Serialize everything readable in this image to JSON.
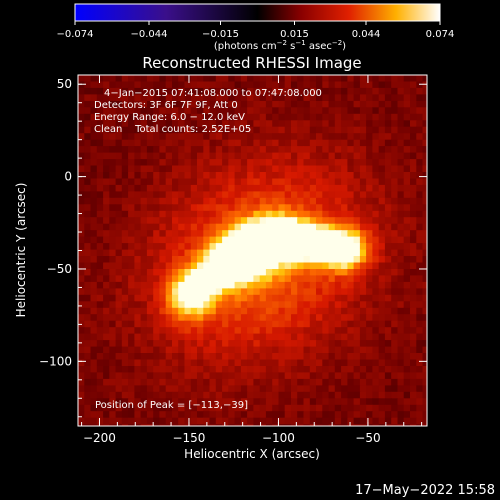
{
  "chart_data": {
    "type": "heatmap",
    "title": "Reconstructed RHESSI Image",
    "xlabel": "Heliocentric X (arcsec)",
    "ylabel": "Heliocentric Y (arcsec)",
    "xlim": [
      -212,
      -17
    ],
    "ylim": [
      -135,
      55
    ],
    "xticks": [
      -200,
      -150,
      -100,
      -50
    ],
    "xtick_labels": [
      "−200",
      "−150",
      "−100",
      "−50"
    ],
    "yticks": [
      50,
      0,
      -50,
      -100
    ],
    "ytick_labels": [
      "50",
      "0",
      "−50",
      "−100"
    ],
    "colorbar": {
      "ticks": [
        -0.074,
        -0.044,
        -0.015,
        0.015,
        0.044,
        0.074
      ],
      "tick_labels": [
        "−0.074",
        "−0.044",
        "−0.015",
        "0.015",
        "0.044",
        "0.074"
      ],
      "range": [
        -0.074,
        0.074
      ],
      "unit_label_parts": [
        "(photons cm",
        "−2",
        " s",
        "−1",
        " asec",
        "−2",
        ")"
      ]
    },
    "annotations": [
      "4−Jan−2015 07:41:08.000 to 07:47:08.000",
      "Detectors: 3F 6F 7F 9F, Att 0",
      "Energy Range: 6.0 − 12.0 keV",
      "Clean    Total counts: 2.52E+05"
    ],
    "peak_label": "Position of Peak = [−113,−39]",
    "peak": [
      -113,
      -39
    ],
    "source_components": [
      {
        "x": -113,
        "y": -39,
        "peak": 0.074,
        "sx": 12,
        "sy": 9,
        "angle": 30
      },
      {
        "x": -130,
        "y": -48,
        "peak": 0.055,
        "sx": 14,
        "sy": 8,
        "angle": 35
      },
      {
        "x": -78,
        "y": -37,
        "peak": 0.052,
        "sx": 14,
        "sy": 7,
        "angle": 0
      },
      {
        "x": -63,
        "y": -40,
        "peak": 0.044,
        "sx": 9,
        "sy": 8,
        "angle": 0
      },
      {
        "x": -150,
        "y": -65,
        "peak": 0.045,
        "sx": 9,
        "sy": 9,
        "angle": 40
      },
      {
        "x": -95,
        "y": -32,
        "peak": 0.04,
        "sx": 9,
        "sy": 7,
        "angle": 0
      },
      {
        "x": -110,
        "y": -45,
        "peak": 0.033,
        "sx": 42,
        "sy": 34,
        "angle": 30
      }
    ],
    "background_level": 0.016
  },
  "footer_timestamp": "17−May−2022 15:58"
}
